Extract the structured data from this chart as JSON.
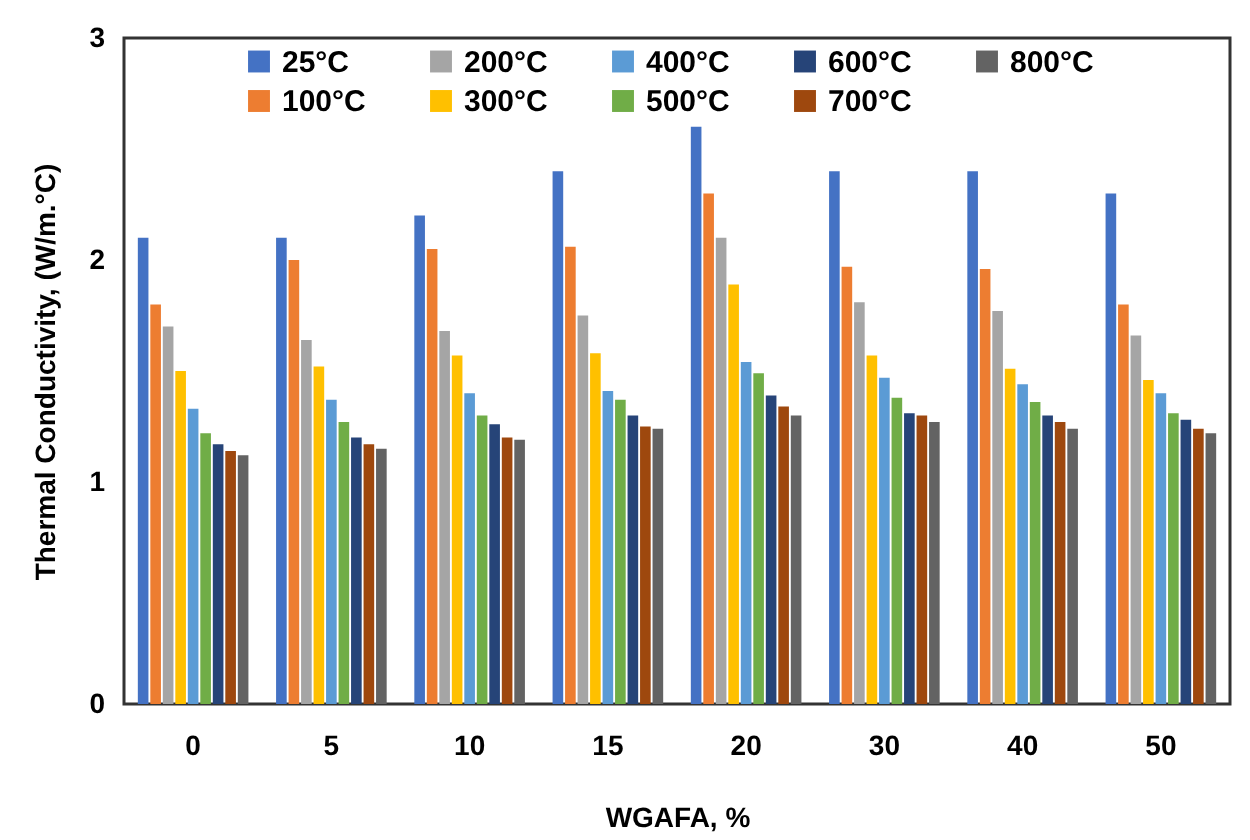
{
  "chart_data": {
    "type": "bar",
    "xlabel": "WGAFA, %",
    "ylabel": "Thermal Conductivity, (W/m.°C)",
    "categories": [
      "0",
      "5",
      "10",
      "15",
      "20",
      "30",
      "40",
      "50"
    ],
    "ylim": [
      0,
      3
    ],
    "yticks": [
      0,
      1,
      2,
      3
    ],
    "legend": "top",
    "series": [
      {
        "name": "25°C",
        "color": "#4472c4",
        "values": [
          2.1,
          2.1,
          2.2,
          2.4,
          2.6,
          2.4,
          2.4,
          2.3
        ]
      },
      {
        "name": "100°C",
        "color": "#ed7d31",
        "values": [
          1.8,
          2.0,
          2.05,
          2.06,
          2.3,
          1.97,
          1.96,
          1.8
        ]
      },
      {
        "name": "200°C",
        "color": "#a5a5a5",
        "values": [
          1.7,
          1.64,
          1.68,
          1.75,
          2.1,
          1.81,
          1.77,
          1.66
        ]
      },
      {
        "name": "300°C",
        "color": "#ffc000",
        "values": [
          1.5,
          1.52,
          1.57,
          1.58,
          1.89,
          1.57,
          1.51,
          1.46
        ]
      },
      {
        "name": "400°C",
        "color": "#5b9bd5",
        "values": [
          1.33,
          1.37,
          1.4,
          1.41,
          1.54,
          1.47,
          1.44,
          1.4
        ]
      },
      {
        "name": "500°C",
        "color": "#70ad47",
        "values": [
          1.22,
          1.27,
          1.3,
          1.37,
          1.49,
          1.38,
          1.36,
          1.31
        ]
      },
      {
        "name": "600°C",
        "color": "#264478",
        "values": [
          1.17,
          1.2,
          1.26,
          1.3,
          1.39,
          1.31,
          1.3,
          1.28
        ]
      },
      {
        "name": "700°C",
        "color": "#9e480e",
        "values": [
          1.14,
          1.17,
          1.2,
          1.25,
          1.34,
          1.3,
          1.27,
          1.24
        ]
      },
      {
        "name": "800°C",
        "color": "#636363",
        "values": [
          1.12,
          1.15,
          1.19,
          1.24,
          1.3,
          1.27,
          1.24,
          1.22
        ]
      }
    ]
  }
}
